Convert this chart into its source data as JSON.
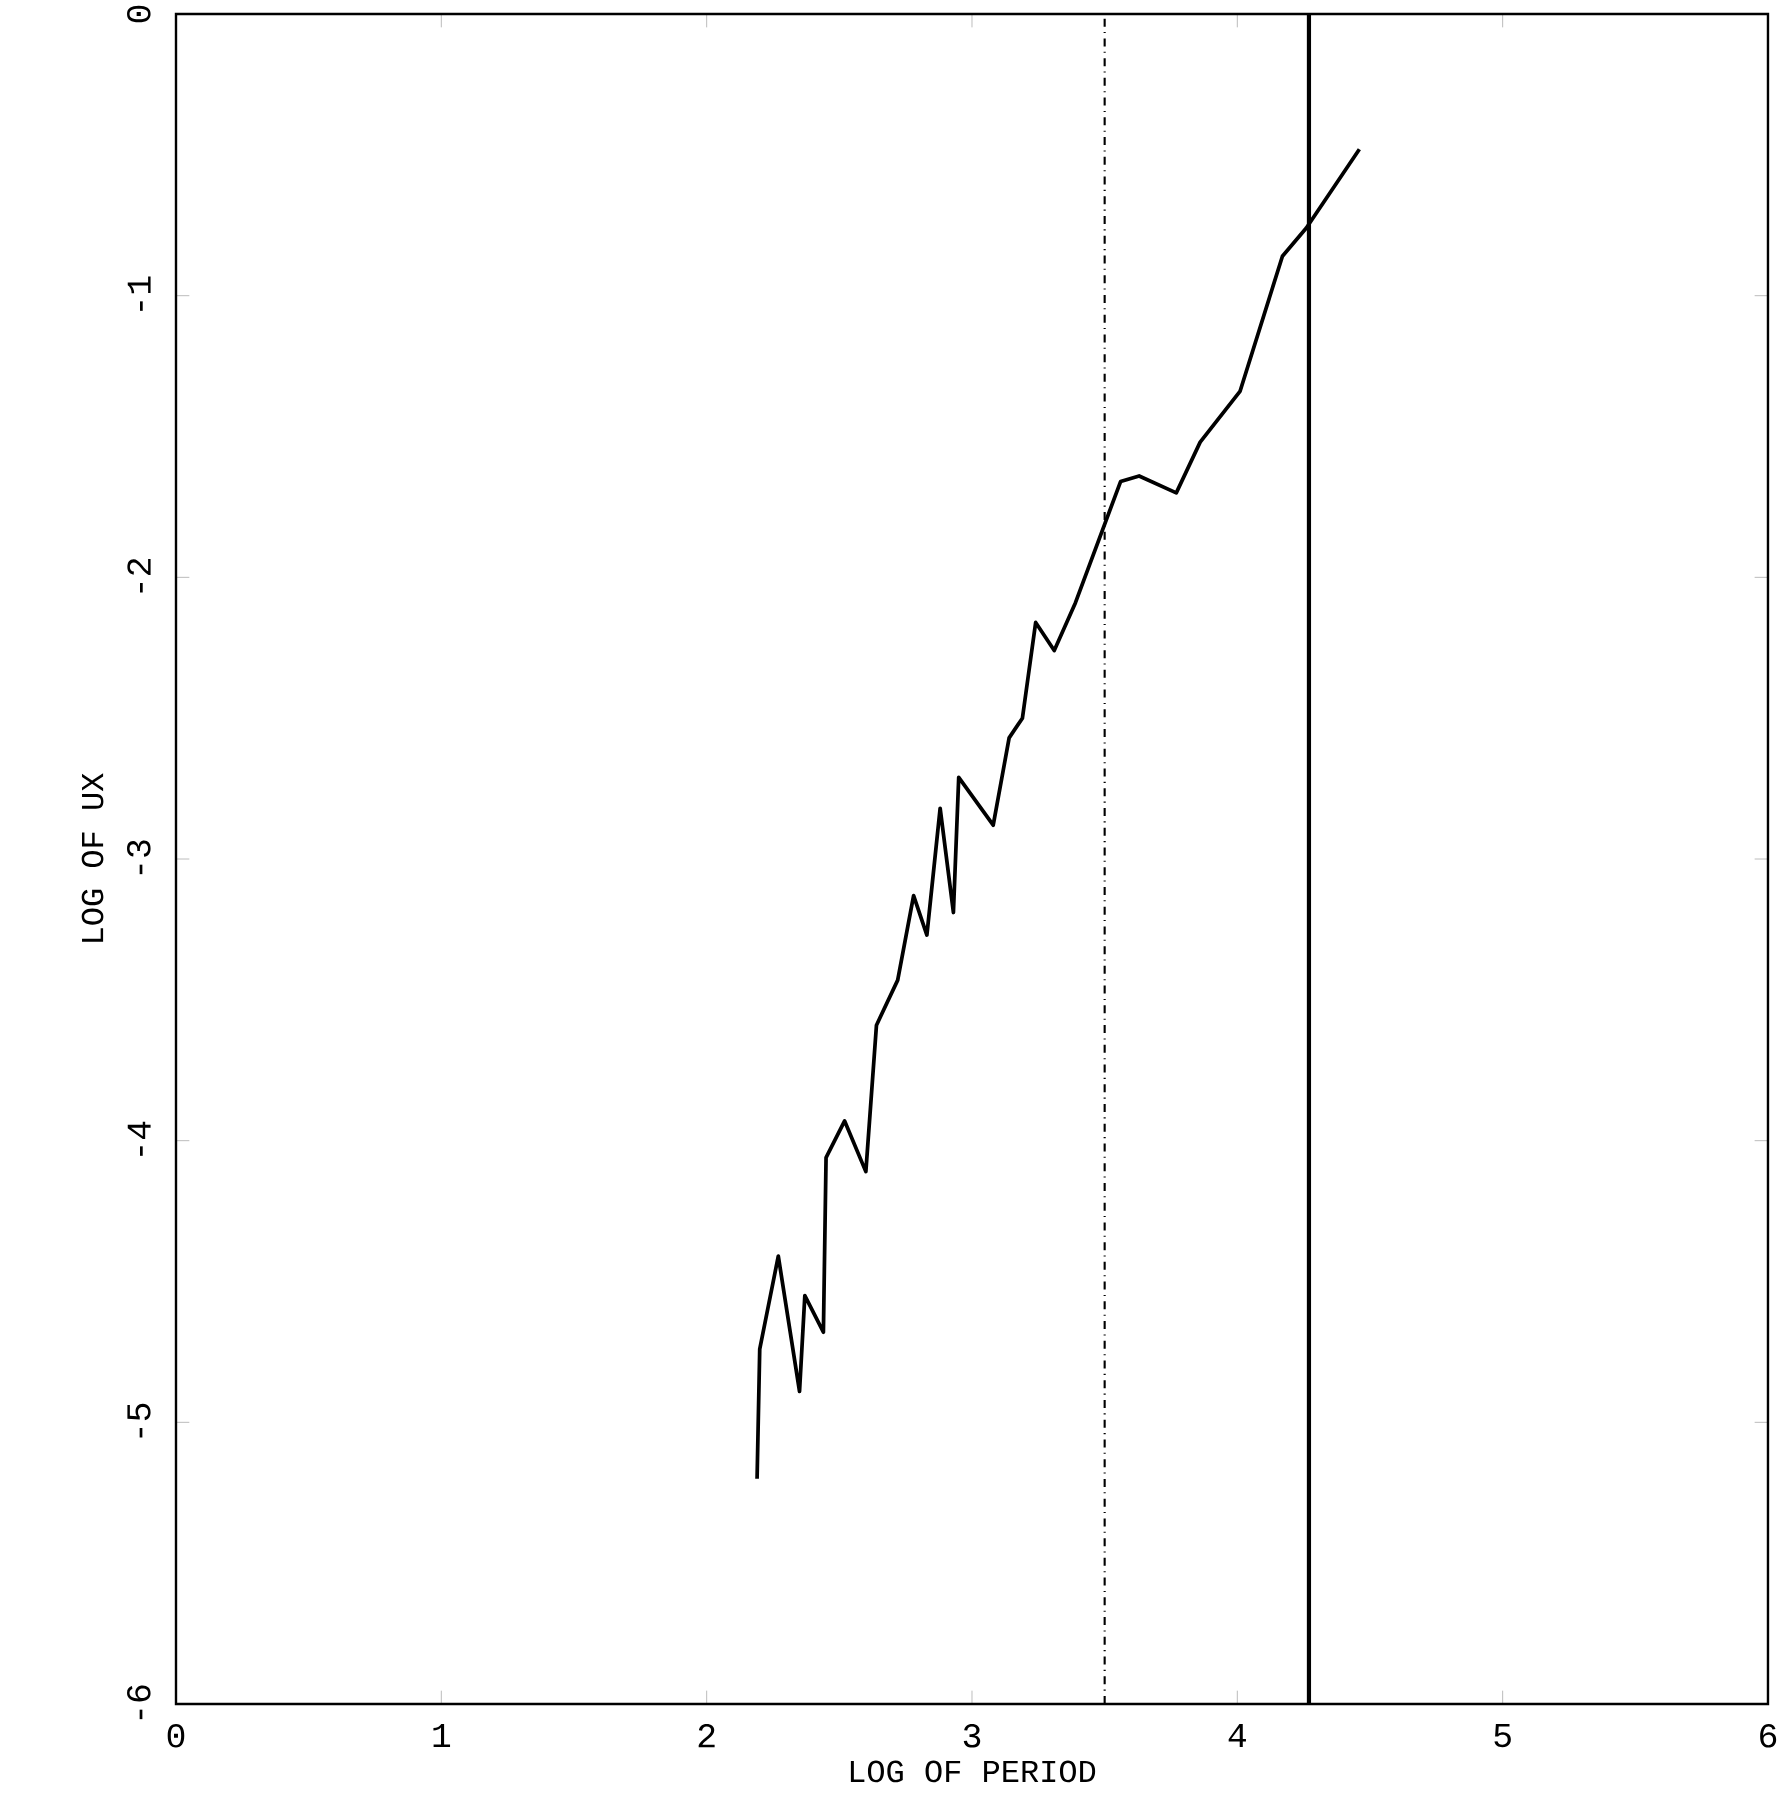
{
  "chart_data": {
    "type": "line",
    "xlabel": "LOG OF PERIOD",
    "ylabel": "LOG OF UX",
    "x": [
      2.19,
      2.2,
      2.27,
      2.35,
      2.37,
      2.44,
      2.45,
      2.52,
      2.6,
      2.64,
      2.72,
      2.78,
      2.83,
      2.88,
      2.93,
      2.95,
      3.08,
      3.14,
      3.19,
      3.24,
      3.31,
      3.39,
      3.56,
      3.63,
      3.77,
      3.86,
      4.01,
      4.17,
      4.26,
      4.46
    ],
    "series": [
      {
        "color": "#000000",
        "values": [
          -5.2,
          -4.74,
          -4.41,
          -4.89,
          -4.55,
          -4.68,
          -4.06,
          -3.93,
          -4.11,
          -3.59,
          -3.43,
          -3.13,
          -3.27,
          -2.82,
          -3.19,
          -2.71,
          -2.88,
          -2.57,
          -2.5,
          -2.16,
          -2.26,
          -2.09,
          -1.66,
          -1.64,
          -1.7,
          -1.52,
          -1.34,
          -0.86,
          -0.76,
          -0.48
        ]
      }
    ],
    "xlim": [
      0,
      6
    ],
    "ylim": [
      -6,
      0
    ],
    "xticks": [
      0,
      1,
      2,
      3,
      4,
      5,
      6
    ],
    "yticks": [
      -6,
      -5,
      -4,
      -3,
      -2,
      -1,
      0
    ],
    "ref_lines": [
      {
        "axis": "x",
        "value": 3.5,
        "line_style": "dashdot",
        "color": "#000000"
      },
      {
        "axis": "x",
        "value": 4.27,
        "line_style": "solid",
        "color": "#000000"
      }
    ],
    "grid": false,
    "marker": "none",
    "line_style": "solid"
  }
}
